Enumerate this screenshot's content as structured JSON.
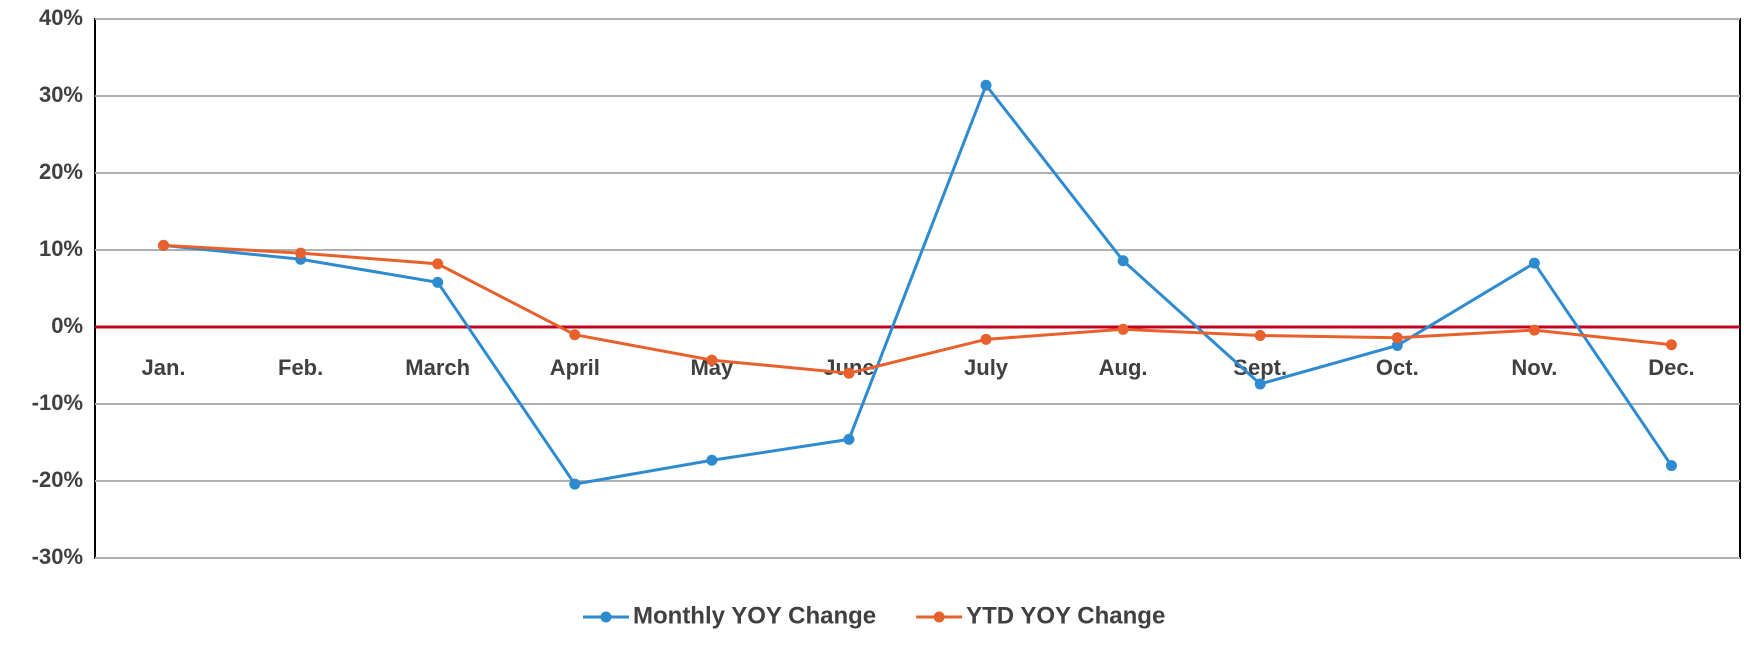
{
  "chart_data": {
    "type": "line",
    "categories": [
      "Jan.",
      "Feb.",
      "March",
      "April",
      "May",
      "June",
      "July",
      "Aug.",
      "Sept.",
      "Oct.",
      "Nov.",
      "Dec."
    ],
    "series": [
      {
        "name": "Monthly YOY Change",
        "color": "#2e8bd0",
        "values": [
          10.6,
          8.8,
          5.8,
          -20.4,
          -17.3,
          -14.6,
          31.4,
          8.6,
          -7.4,
          -2.4,
          8.3,
          -18
        ]
      },
      {
        "name": "YTD YOY Change",
        "color": "#e8612c",
        "values": [
          10.6,
          9.6,
          8.2,
          -1,
          -4.3,
          -6,
          -1.6,
          -0.3,
          -1.1,
          -1.4,
          -0.4,
          -2.3
        ]
      }
    ],
    "ylim": [
      -30,
      40
    ],
    "yticks": [
      {
        "value": -30,
        "label": "-30%"
      },
      {
        "value": -20,
        "label": "-20%"
      },
      {
        "value": -10,
        "label": "-10%"
      },
      {
        "value": 0,
        "label": "0%"
      },
      {
        "value": 10,
        "label": "10%"
      },
      {
        "value": 20,
        "label": "20%"
      },
      {
        "value": 30,
        "label": "30%"
      },
      {
        "value": 40,
        "label": "40%"
      }
    ],
    "grid": true,
    "legend": "bottom"
  }
}
